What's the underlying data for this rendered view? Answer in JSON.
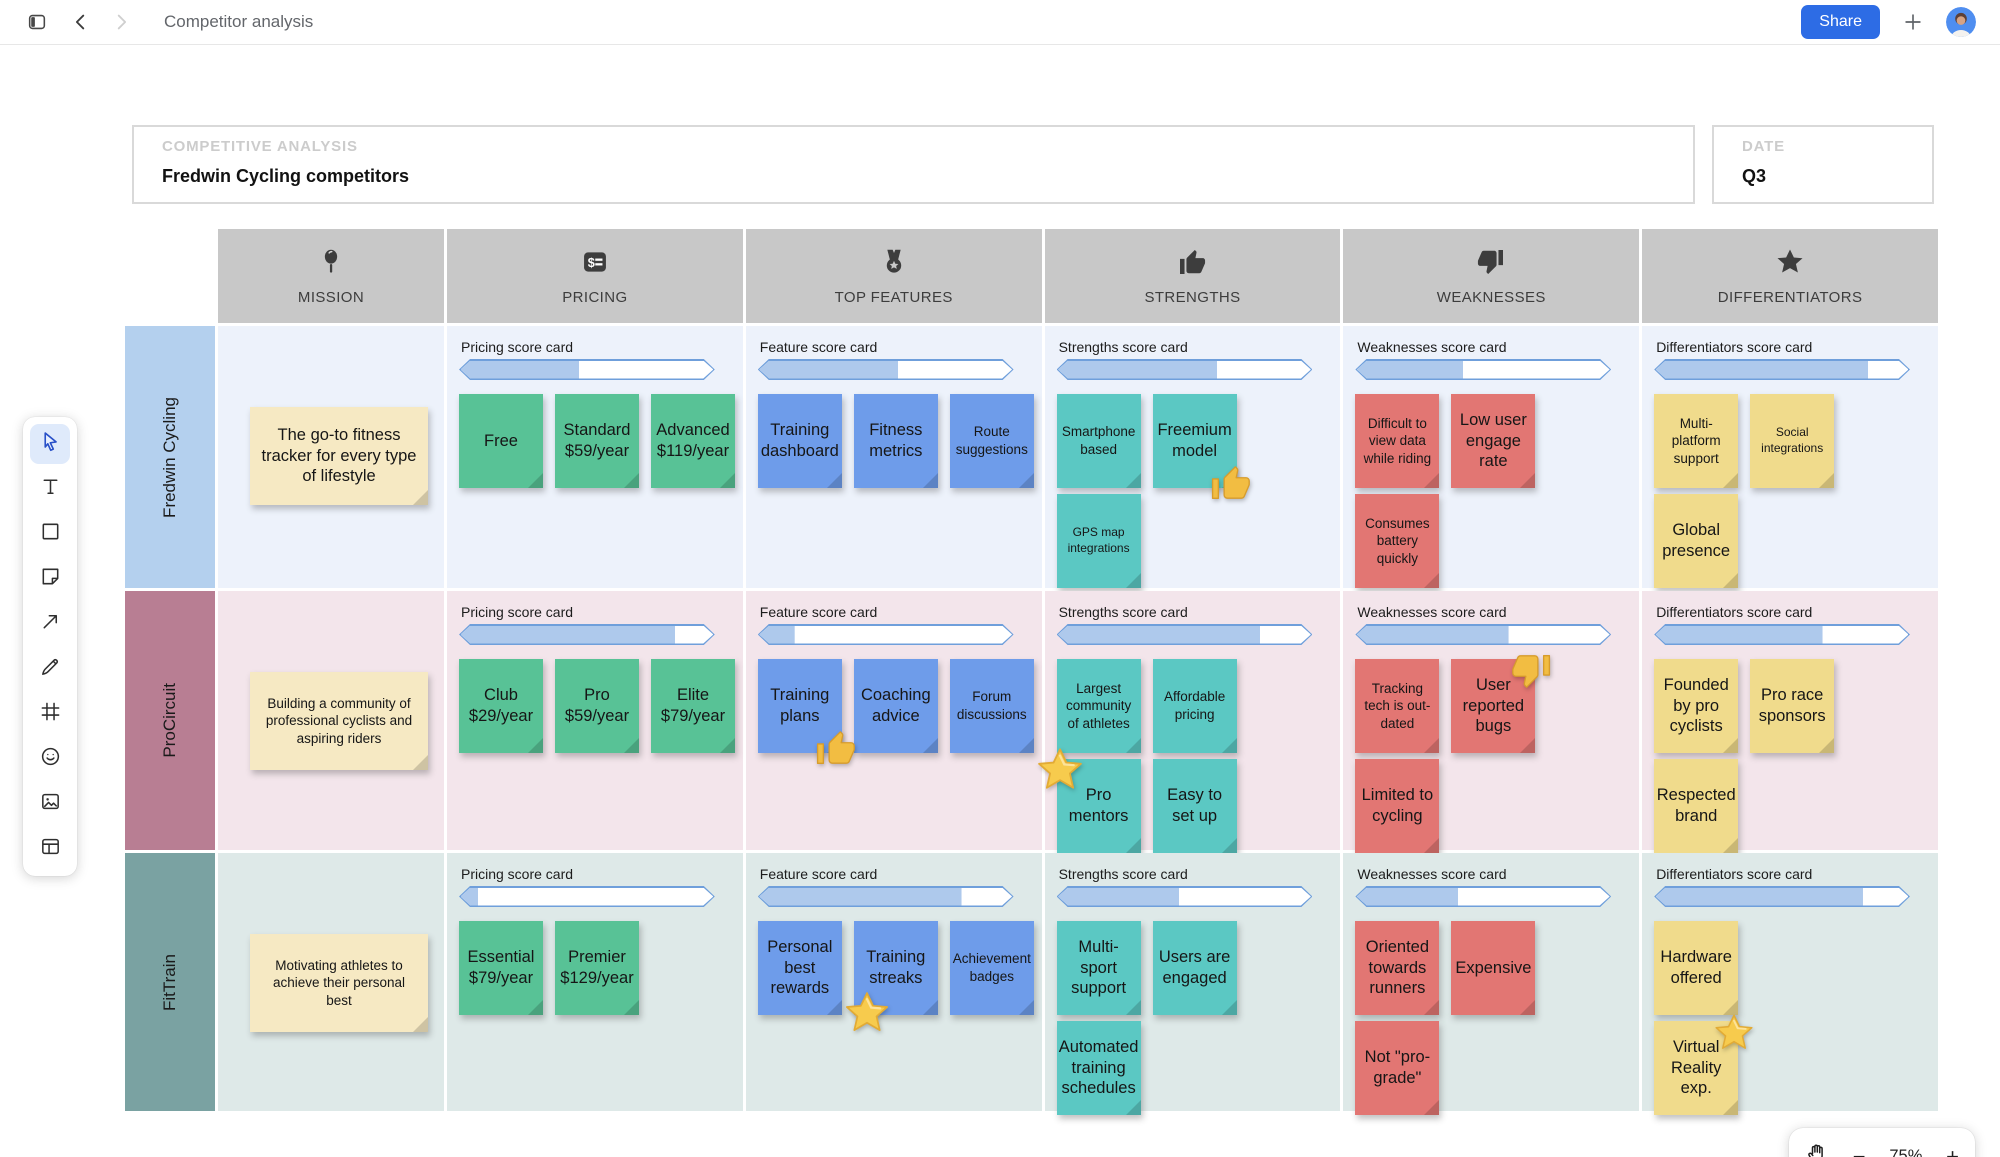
{
  "topbar": {
    "title": "Competitor analysis",
    "share_label": "Share"
  },
  "title_card": {
    "label": "COMPETITIVE ANALYSIS",
    "title": "Fredwin Cycling competitors"
  },
  "date_card": {
    "label": "DATE",
    "value": "Q3"
  },
  "zoom_controls": {
    "zoom_out": "−",
    "level": "75%",
    "zoom_in": "+"
  },
  "colors": {
    "accent_blue": "#2d6ce5",
    "header_gray": "#c8c8c8",
    "bar_border": "#6f9fdb",
    "bar_fill": "#aec9ec",
    "note_green": "#58c296",
    "note_blue": "#6e9cea",
    "note_teal": "#5bc8c3",
    "note_red": "#e27673",
    "note_yellow": "#f0db8c",
    "note_cream": "#f6e9c3"
  },
  "toolbar": {
    "tools": [
      {
        "name": "select-tool",
        "icon": "cursor-icon",
        "active": true
      },
      {
        "name": "text-tool",
        "icon": "text-icon",
        "active": false
      },
      {
        "name": "shape-tool",
        "icon": "square-icon",
        "active": false
      },
      {
        "name": "sticky-note-tool",
        "icon": "sticky-note-icon",
        "active": false
      },
      {
        "name": "arrow-tool",
        "icon": "arrow-icon",
        "active": false
      },
      {
        "name": "pen-tool",
        "icon": "pen-icon",
        "active": false
      },
      {
        "name": "frame-tool",
        "icon": "frame-icon",
        "active": false
      },
      {
        "name": "emoji-tool",
        "icon": "smiley-icon",
        "active": false
      },
      {
        "name": "image-tool",
        "icon": "image-icon",
        "active": false
      },
      {
        "name": "table-tool",
        "icon": "layout-icon",
        "active": false
      }
    ]
  },
  "table": {
    "columns": [
      {
        "key": "mission",
        "label": "MISSION",
        "icon": "pin-icon",
        "note_color": "#f6e9c3"
      },
      {
        "key": "pricing",
        "label": "PRICING",
        "icon": "receipt-icon",
        "scorecard_label": "Pricing score card",
        "note_color": "#58c296"
      },
      {
        "key": "features",
        "label": "TOP FEATURES",
        "icon": "medal-icon",
        "scorecard_label": "Feature score card",
        "note_color": "#6e9cea"
      },
      {
        "key": "strengths",
        "label": "STRENGTHS",
        "icon": "thumbs-up-icon",
        "scorecard_label": "Strengths score card",
        "note_color": "#5bc8c3"
      },
      {
        "key": "weaknesses",
        "label": "WEAKNESSES",
        "icon": "thumbs-down-icon",
        "scorecard_label": "Weaknesses score card",
        "note_color": "#e27673"
      },
      {
        "key": "differentiators",
        "label": "DIFFERENTIATORS",
        "icon": "star-icon",
        "scorecard_label": "Differentiators score card",
        "note_color": "#f0db8c"
      }
    ],
    "rows": [
      {
        "name": "Fredwin Cycling",
        "label_bg": "#b4d0ee",
        "row_bg": "#edf2fb",
        "mission": {
          "text": "The go-to fitness tracker for every type of lifestyle",
          "size": "md"
        },
        "cells": {
          "pricing": {
            "score_percent": 47,
            "note_rows": [
              [
                {
                  "text": "Free",
                  "size": "md"
                },
                {
                  "text": "Standard $59/year",
                  "size": "md"
                },
                {
                  "text": "Advanced $119/year",
                  "size": "md"
                }
              ]
            ]
          },
          "features": {
            "score_percent": 55,
            "note_rows": [
              [
                {
                  "text": "Training dashboard",
                  "size": "md"
                },
                {
                  "text": "Fitness metrics",
                  "size": "md"
                },
                {
                  "text": "Route suggestions",
                  "size": "sm"
                }
              ]
            ]
          },
          "strengths": {
            "score_percent": 63,
            "note_rows": [
              [
                {
                  "text": "Smartphone based",
                  "size": "sm"
                },
                {
                  "text": "Freemium model",
                  "size": "md",
                  "emoji": "thumbs-up",
                  "emoji_pos": "br"
                }
              ],
              [
                {
                  "text": "GPS map integrations",
                  "size": "xs"
                }
              ]
            ]
          },
          "weaknesses": {
            "score_percent": 42,
            "note_rows": [
              [
                {
                  "text": "Difficult to view data while riding",
                  "size": "sm"
                },
                {
                  "text": "Low user engage rate",
                  "size": "md"
                }
              ],
              [
                {
                  "text": "Consumes battery quickly",
                  "size": "sm"
                }
              ]
            ]
          },
          "differentiators": {
            "score_percent": 84,
            "note_rows": [
              [
                {
                  "text": "Multi-platform support",
                  "size": "sm"
                },
                {
                  "text": "Social integrations",
                  "size": "xs"
                }
              ],
              [
                {
                  "text": "Global presence",
                  "size": "md"
                }
              ]
            ]
          }
        }
      },
      {
        "name": "ProCircuit",
        "label_bg": "#b87e93",
        "row_bg": "#f3e5eb",
        "mission": {
          "text": "Building a community of professional cyclists and aspiring riders",
          "size": "sm"
        },
        "cells": {
          "pricing": {
            "score_percent": 85,
            "note_rows": [
              [
                {
                  "text": "Club $29/year",
                  "size": "md"
                },
                {
                  "text": "Pro $59/year",
                  "size": "md"
                },
                {
                  "text": "Elite $79/year",
                  "size": "md"
                }
              ]
            ]
          },
          "features": {
            "score_percent": 14,
            "note_rows": [
              [
                {
                  "text": "Training plans",
                  "size": "md",
                  "emoji": "thumbs-up",
                  "emoji_pos": "br"
                },
                {
                  "text": "Coaching advice",
                  "size": "md"
                },
                {
                  "text": "Forum discussions",
                  "size": "sm"
                }
              ]
            ]
          },
          "strengths": {
            "score_percent": 80,
            "note_rows": [
              [
                {
                  "text": "Largest community of athletes",
                  "size": "sm"
                },
                {
                  "text": "Affordable pricing",
                  "size": "sm"
                }
              ],
              [
                {
                  "text": "Pro mentors",
                  "size": "md",
                  "emoji": "star",
                  "emoji_pos": "tl"
                },
                {
                  "text": "Easy to set up",
                  "size": "md"
                }
              ]
            ]
          },
          "weaknesses": {
            "score_percent": 60,
            "note_rows": [
              [
                {
                  "text": "Tracking tech is out-dated",
                  "size": "sm"
                },
                {
                  "text": "User reported bugs",
                  "size": "md",
                  "emoji": "thumbs-down",
                  "emoji_pos": "tr"
                }
              ],
              [
                {
                  "text": "Limited to cycling",
                  "size": "md"
                }
              ]
            ]
          },
          "differentiators": {
            "score_percent": 66,
            "note_rows": [
              [
                {
                  "text": "Founded by pro cyclists",
                  "size": "md"
                },
                {
                  "text": "Pro race sponsors",
                  "size": "md"
                }
              ],
              [
                {
                  "text": "Respected brand",
                  "size": "md"
                }
              ]
            ]
          }
        }
      },
      {
        "name": "FitTrain",
        "label_bg": "#7aa2a2",
        "row_bg": "#dee9e8",
        "mission": {
          "text": "Motivating athletes to achieve their personal best",
          "size": "sm"
        },
        "cells": {
          "pricing": {
            "score_percent": 7,
            "note_rows": [
              [
                {
                  "text": "Essential $79/year",
                  "size": "md"
                },
                {
                  "text": "Premier $129/year",
                  "size": "md"
                }
              ]
            ]
          },
          "features": {
            "score_percent": 80,
            "note_rows": [
              [
                {
                  "text": "Personal best rewards",
                  "size": "md"
                },
                {
                  "text": "Training streaks",
                  "size": "md",
                  "emoji": "star",
                  "emoji_pos": "bl"
                },
                {
                  "text": "Achievement badges",
                  "size": "sm"
                }
              ]
            ]
          },
          "strengths": {
            "score_percent": 48,
            "note_rows": [
              [
                {
                  "text": "Multi-sport support",
                  "size": "md"
                },
                {
                  "text": "Users are engaged",
                  "size": "md"
                }
              ],
              [
                {
                  "text": "Automated training schedules",
                  "size": "md"
                }
              ]
            ]
          },
          "weaknesses": {
            "score_percent": 40,
            "note_rows": [
              [
                {
                  "text": "Oriented towards runners",
                  "size": "md"
                },
                {
                  "text": "Expensive",
                  "size": "md"
                }
              ],
              [
                {
                  "text": "Not \"pro-grade\"",
                  "size": "md"
                }
              ]
            ]
          },
          "differentiators": {
            "score_percent": 82,
            "note_rows": [
              [
                {
                  "text": "Hardware offered",
                  "size": "md"
                }
              ],
              [
                {
                  "text": "Virtual Reality exp.",
                  "size": "md",
                  "emoji": "star",
                  "emoji_pos": "tr"
                }
              ]
            ]
          }
        }
      }
    ]
  }
}
